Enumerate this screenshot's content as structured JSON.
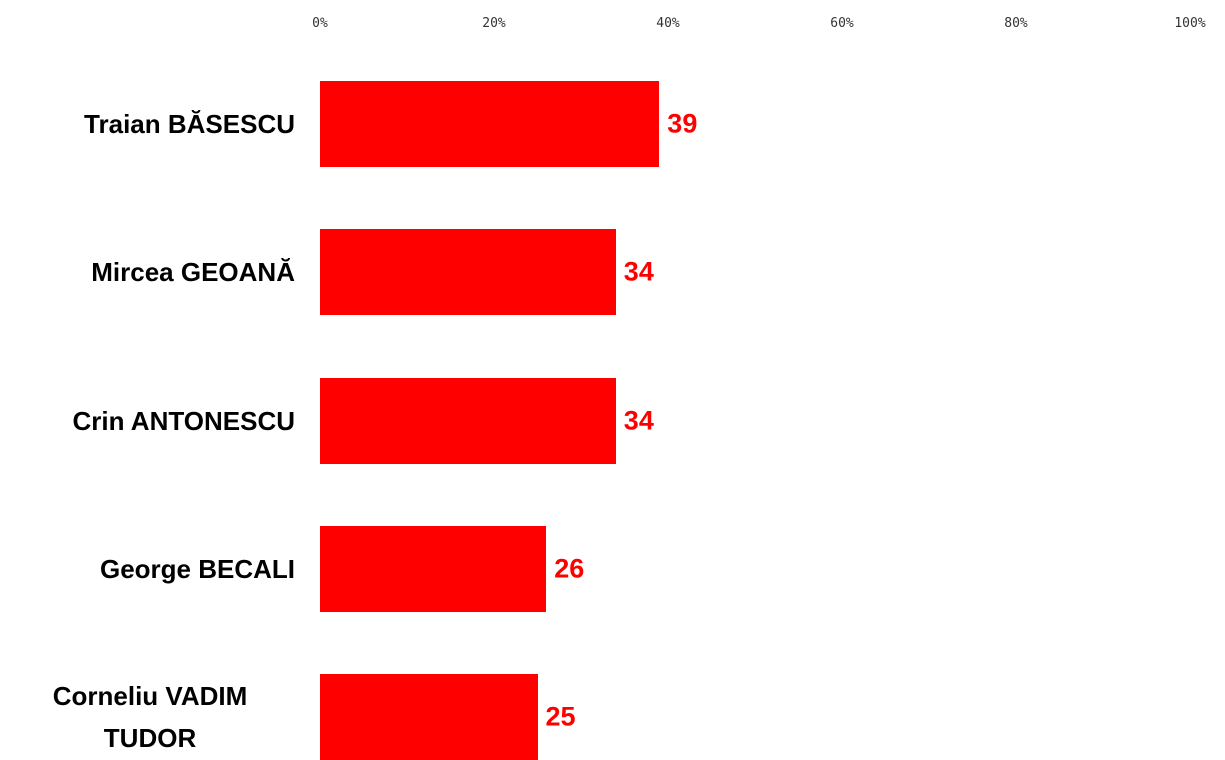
{
  "chart_data": {
    "type": "bar",
    "orientation": "horizontal",
    "categories": [
      "Traian BĂSESCU",
      "Mircea GEOANĂ",
      "Crin ANTONESCU",
      "George BECALI",
      "Corneliu VADIM TUDOR"
    ],
    "values": [
      39,
      34,
      34,
      26,
      25
    ],
    "color": "#ff0000",
    "xlim": [
      0,
      100
    ],
    "xticks": [
      {
        "value": 0,
        "label": "0%"
      },
      {
        "value": 20,
        "label": "20%"
      },
      {
        "value": 40,
        "label": "40%"
      },
      {
        "value": 60,
        "label": "60%"
      },
      {
        "value": 80,
        "label": "80%"
      },
      {
        "value": 100,
        "label": "100%"
      }
    ],
    "grid": false
  }
}
